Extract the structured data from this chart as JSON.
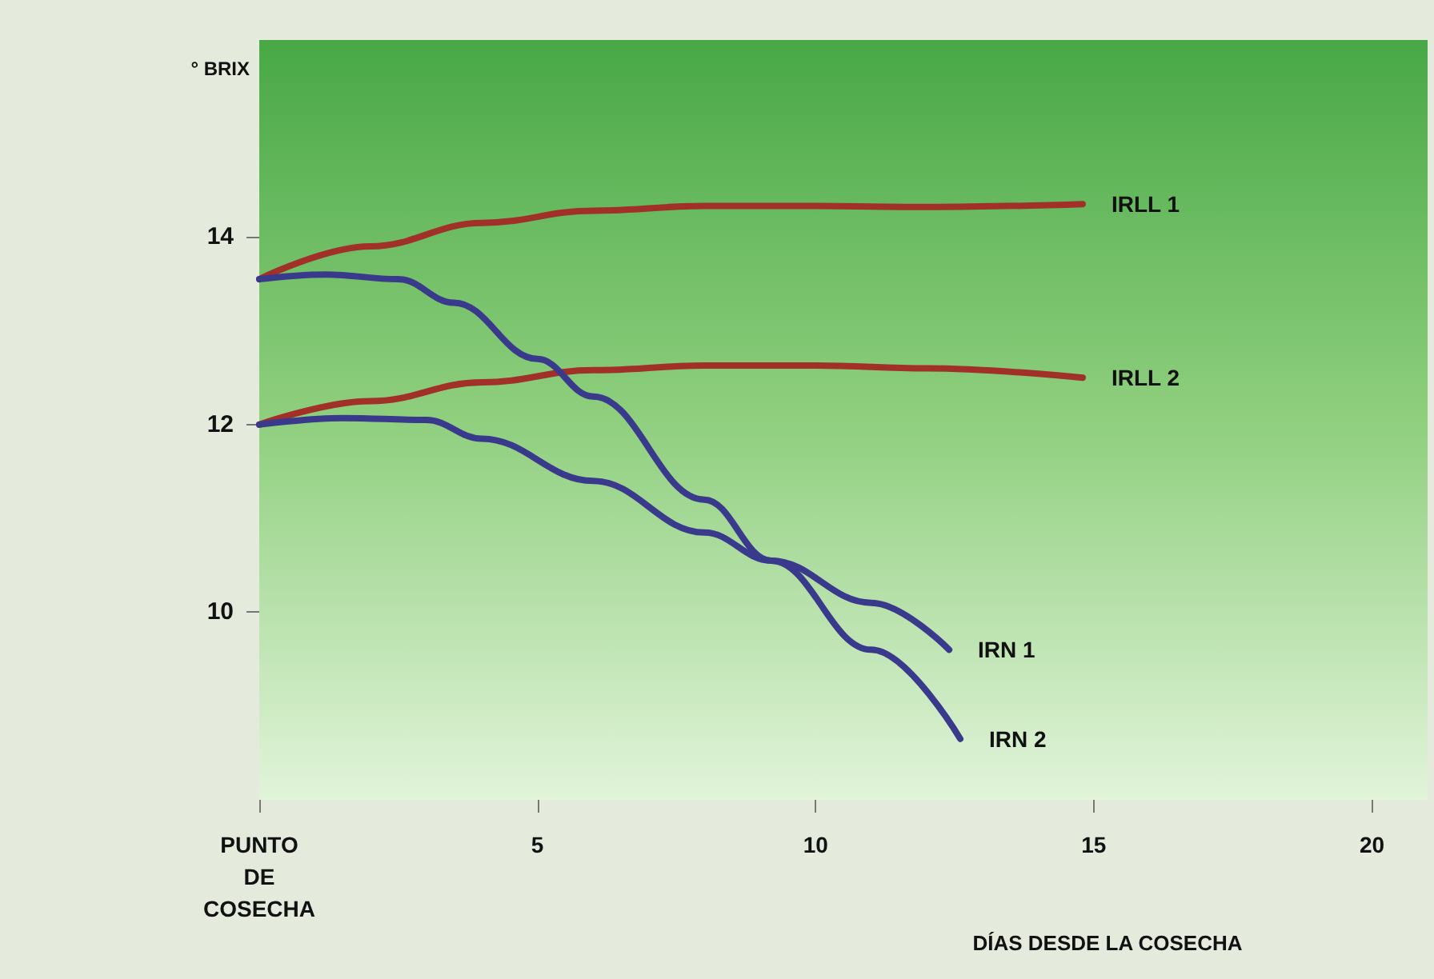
{
  "chart_data": {
    "type": "line",
    "ylabel": "° BRIX",
    "xlabel": "DÍAS DESDE LA COSECHA",
    "xlim": [
      0,
      21
    ],
    "xticks": [
      {
        "value": 0,
        "label": "PUNTO DE COSECHA"
      },
      5,
      10,
      15,
      20
    ],
    "ylim": [
      8,
      16.1
    ],
    "yticks": [
      10,
      12,
      14
    ],
    "grid": false,
    "legend": false,
    "marker": "none",
    "line_style": "solid",
    "series": [
      {
        "name": "IRLL 1",
        "color": "#a03028",
        "x": [
          0,
          2,
          4,
          6,
          8,
          10,
          12,
          14.8
        ],
        "values": [
          13.55,
          13.9,
          14.15,
          14.28,
          14.33,
          14.33,
          14.32,
          14.35
        ]
      },
      {
        "name": "IRLL 2",
        "color": "#a03028",
        "x": [
          0,
          2,
          4,
          6,
          8,
          10,
          12,
          14.8
        ],
        "values": [
          12,
          12.25,
          12.45,
          12.58,
          12.63,
          12.63,
          12.6,
          12.5
        ]
      },
      {
        "name": "IRN 1",
        "color": "#3a3a8c",
        "x": [
          0,
          1.5,
          3,
          4,
          6,
          8,
          9.2,
          11,
          12.4
        ],
        "values": [
          12,
          12.07,
          12.05,
          11.85,
          11.4,
          10.85,
          10.55,
          10.1,
          9.6
        ]
      },
      {
        "name": "IRN 2",
        "color": "#3a3a8c",
        "x": [
          0,
          1.2,
          2.5,
          3.5,
          5,
          6,
          8,
          9.2,
          11,
          12.6
        ],
        "values": [
          13.55,
          13.6,
          13.55,
          13.3,
          12.7,
          12.3,
          11.2,
          10.55,
          9.6,
          8.65
        ]
      }
    ]
  }
}
